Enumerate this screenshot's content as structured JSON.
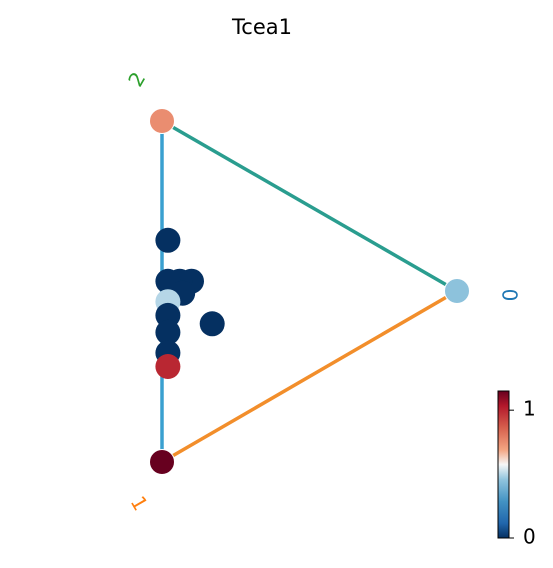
{
  "chart_data": {
    "type": "scatter",
    "title": "Tcea1",
    "vertices": [
      {
        "label": "0",
        "color": "#1f77b4",
        "value": 0.45
      },
      {
        "label": "1",
        "color": "#ff7f0e",
        "value": 1.15
      },
      {
        "label": "2",
        "color": "#2ca02c",
        "value": 0.75
      }
    ],
    "edge_colors": [
      "#2a9d8f",
      "#f28e2b",
      "#3aa0d0"
    ],
    "points": [
      {
        "w": [
          0.02,
          0.34,
          0.64
        ],
        "value": 0.0
      },
      {
        "w": [
          0.1,
          0.42,
          0.48
        ],
        "value": 0.0
      },
      {
        "w": [
          0.06,
          0.44,
          0.5
        ],
        "value": 0.0
      },
      {
        "w": [
          0.02,
          0.46,
          0.52
        ],
        "value": 0.0
      },
      {
        "w": [
          0.07,
          0.47,
          0.46
        ],
        "value": 0.0
      },
      {
        "w": [
          0.17,
          0.51,
          0.32
        ],
        "value": 0.0
      },
      {
        "w": [
          0.02,
          0.52,
          0.46
        ],
        "value": 0.5
      },
      {
        "w": [
          0.02,
          0.56,
          0.42
        ],
        "value": 0.0
      },
      {
        "w": [
          0.02,
          0.61,
          0.37
        ],
        "value": 0.0
      },
      {
        "w": [
          0.02,
          0.67,
          0.31
        ],
        "value": 0.0
      },
      {
        "w": [
          0.02,
          0.71,
          0.27
        ],
        "value": 1.0
      }
    ],
    "colorbar": {
      "cmap": "RdBu_r",
      "vmin": 0,
      "vmax": 1.15,
      "ticks": [
        0,
        1
      ],
      "tick_labels": [
        "0",
        "1"
      ]
    }
  }
}
